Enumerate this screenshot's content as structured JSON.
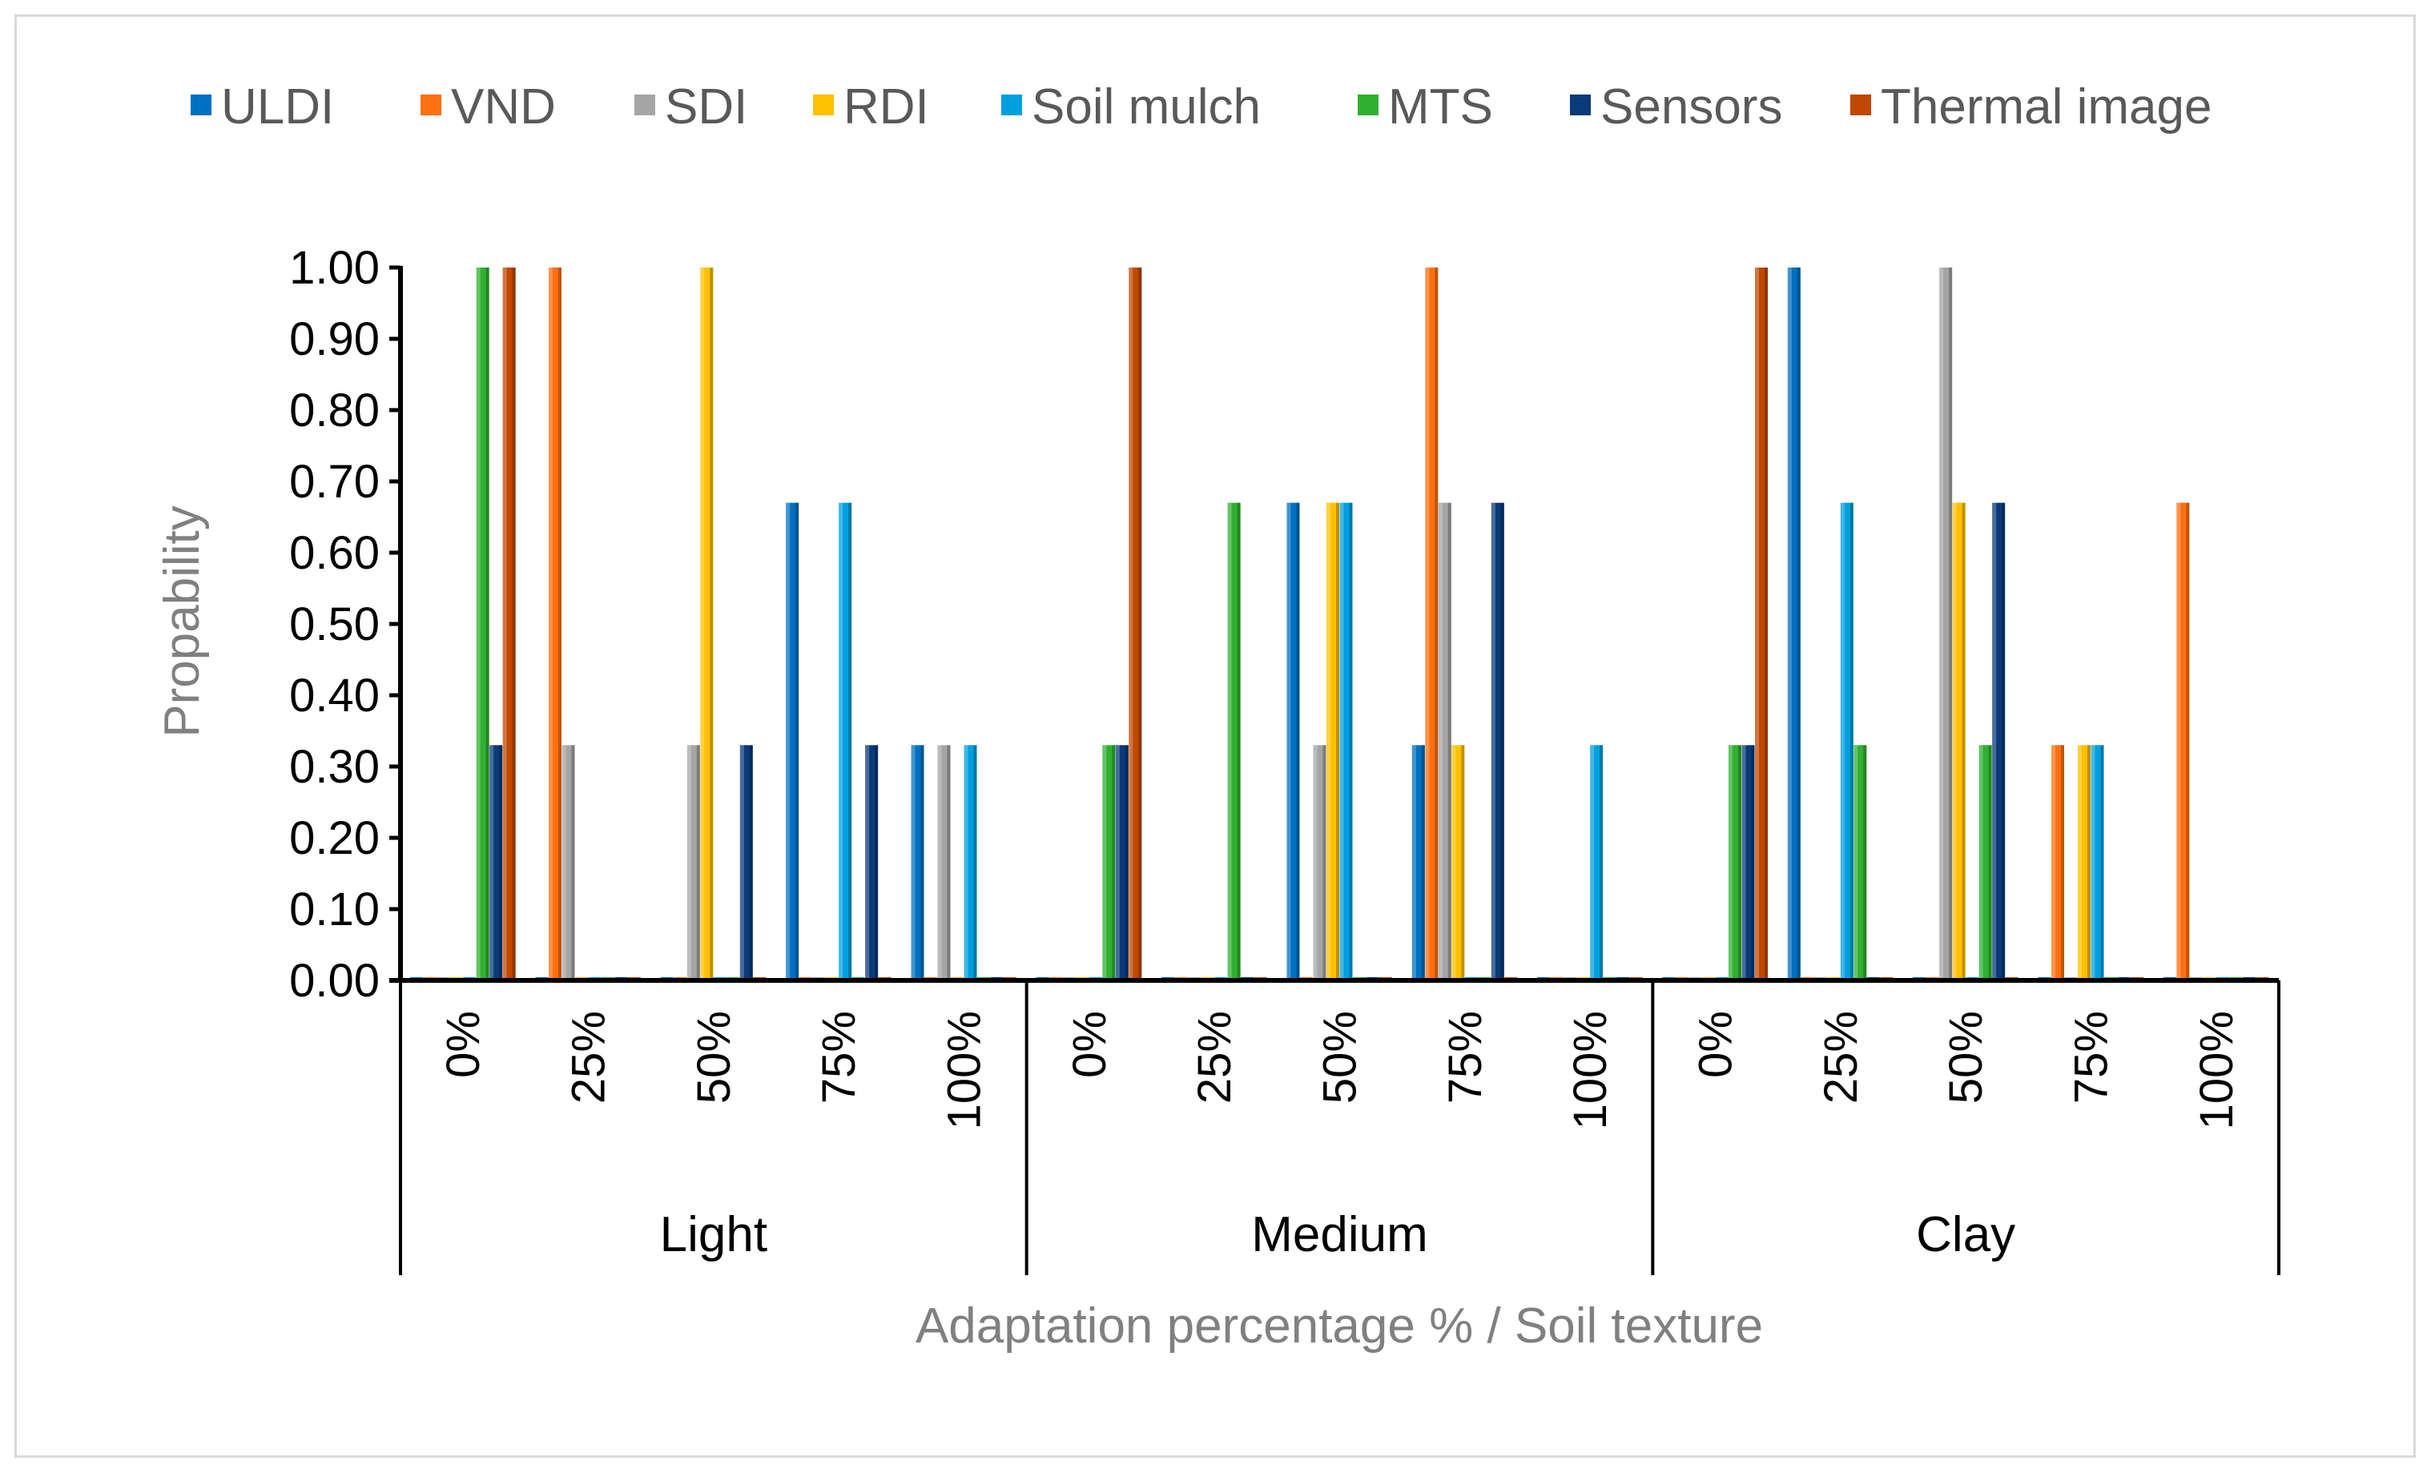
{
  "chart_data": {
    "type": "bar",
    "title": "",
    "xlabel": "Adaptation percentage % / Soil texture",
    "ylabel": "Propability",
    "ylim": [
      0,
      1
    ],
    "yticks": [
      "0.00",
      "0.10",
      "0.20",
      "0.30",
      "0.40",
      "0.50",
      "0.60",
      "0.70",
      "0.80",
      "0.90",
      "1.00"
    ],
    "groups": [
      "Light",
      "Medium",
      "Clay"
    ],
    "subcategories": [
      "0%",
      "25%",
      "50%",
      "75%",
      "100%"
    ],
    "legend_position": "top",
    "series": [
      {
        "name": "ULDI",
        "color": "#0070c0",
        "values": [
          0,
          0,
          0,
          0.67,
          0.33,
          0,
          0,
          0.67,
          0.33,
          0,
          0,
          1,
          0,
          0,
          0
        ]
      },
      {
        "name": "VND",
        "color": "#ff7010",
        "values": [
          0,
          1,
          0,
          0,
          0,
          0,
          0,
          0,
          1,
          0,
          0,
          0,
          0,
          0.33,
          0.67
        ]
      },
      {
        "name": "SDI",
        "color": "#a5a5a5",
        "values": [
          0,
          0.33,
          0.33,
          0,
          0.33,
          0,
          0,
          0.33,
          0.67,
          0,
          0,
          0,
          1,
          0,
          0
        ]
      },
      {
        "name": "RDI",
        "color": "#ffc000",
        "values": [
          0,
          0,
          1,
          0,
          0,
          0,
          0,
          0.67,
          0.33,
          0,
          0,
          0,
          0.67,
          0.33,
          0
        ]
      },
      {
        "name": "Soil mulch",
        "color": "#00a0e0",
        "values": [
          0,
          0,
          0,
          0.67,
          0.33,
          0,
          0,
          0.67,
          0,
          0.33,
          0,
          0.67,
          0,
          0.33,
          0
        ]
      },
      {
        "name": "MTS",
        "color": "#30b030",
        "values": [
          1,
          0,
          0,
          0,
          0,
          0.33,
          0.67,
          0,
          0,
          0,
          0.33,
          0.33,
          0.33,
          0,
          0
        ]
      },
      {
        "name": "Sensors",
        "color": "#0a3a78",
        "values": [
          0.33,
          0,
          0.33,
          0.33,
          0,
          0.33,
          0,
          0,
          0.67,
          0,
          0.33,
          0,
          0.67,
          0,
          0
        ]
      },
      {
        "name": "Thermal image",
        "color": "#c04800",
        "values": [
          1,
          0,
          0,
          0,
          0,
          1,
          0,
          0,
          0,
          0,
          1,
          0,
          0,
          0,
          0
        ]
      }
    ]
  }
}
